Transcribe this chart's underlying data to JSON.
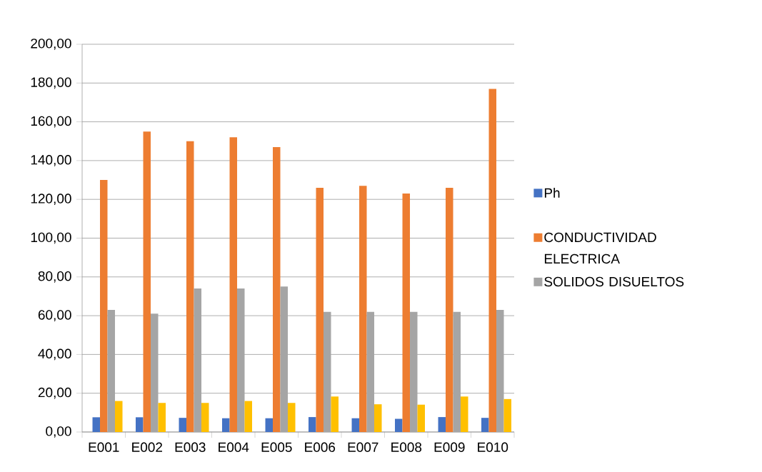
{
  "chart_data": {
    "type": "bar",
    "categories": [
      "E001",
      "E002",
      "E003",
      "E004",
      "E005",
      "E006",
      "E007",
      "E008",
      "E009",
      "E010"
    ],
    "series": [
      {
        "name": "Ph",
        "color": "#4472c4",
        "values": [
          7.6,
          7.6,
          7.3,
          7.1,
          7.1,
          7.7,
          7.1,
          6.8,
          7.7,
          7.3
        ]
      },
      {
        "name": "CONDUCTIVIDAD ELECTRICA",
        "color": "#ed7d31",
        "values": [
          130,
          155,
          150,
          152,
          147,
          126,
          127,
          123,
          126,
          177
        ]
      },
      {
        "name": "SOLIDOS DISUELTOS",
        "color": "#a5a5a5",
        "values": [
          63,
          61,
          74,
          74,
          75,
          62,
          62,
          62,
          62,
          63
        ]
      },
      {
        "color": "#ffc000",
        "values": [
          16,
          15,
          15,
          16,
          15,
          18.3,
          14.3,
          14.1,
          18.3,
          17
        ]
      }
    ],
    "ylim": [
      0,
      200
    ],
    "yticks": [
      {
        "value": 0,
        "label": "0,00"
      },
      {
        "value": 20,
        "label": "20,00"
      },
      {
        "value": 40,
        "label": "40,00"
      },
      {
        "value": 60,
        "label": "60,00"
      },
      {
        "value": 80,
        "label": "80,00"
      },
      {
        "value": 100,
        "label": "100,00"
      },
      {
        "value": 120,
        "label": "120,00"
      },
      {
        "value": 140,
        "label": "140,00"
      },
      {
        "value": 160,
        "label": "160,00"
      },
      {
        "value": 180,
        "label": "180,00"
      },
      {
        "value": 200,
        "label": "200,00"
      }
    ],
    "grid": "y",
    "legend": "right"
  }
}
